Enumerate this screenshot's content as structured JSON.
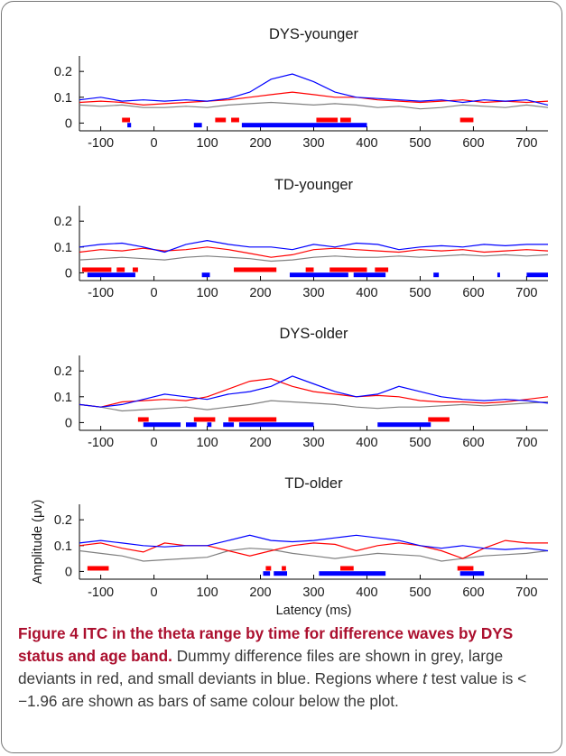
{
  "chart_data": [
    {
      "type": "line",
      "title": "DYS-younger",
      "xlabel": "",
      "ylabel": "",
      "xlim": [
        -140,
        740
      ],
      "ylim": [
        -0.03,
        0.26
      ],
      "x_ticks": [
        -100,
        0,
        100,
        200,
        300,
        400,
        500,
        600,
        700
      ],
      "y_ticks": [
        0,
        0.1,
        0.2
      ],
      "x_tick_labels": [
        "-100",
        "0",
        "100",
        "200",
        "300",
        "400",
        "500",
        "600",
        "700"
      ],
      "y_tick_labels": [
        "0",
        "0.1",
        "0.2"
      ],
      "series": [
        {
          "color": "#808080",
          "x": [
            -140,
            -100,
            -60,
            -20,
            20,
            60,
            100,
            140,
            180,
            220,
            260,
            300,
            340,
            380,
            420,
            460,
            500,
            540,
            580,
            620,
            660,
            700,
            740
          ],
          "values": [
            0.07,
            0.065,
            0.07,
            0.06,
            0.06,
            0.065,
            0.06,
            0.07,
            0.075,
            0.08,
            0.075,
            0.07,
            0.075,
            0.07,
            0.06,
            0.065,
            0.055,
            0.06,
            0.07,
            0.065,
            0.06,
            0.07,
            0.06
          ]
        },
        {
          "color": "#ff0000",
          "x": [
            -140,
            -100,
            -60,
            -20,
            20,
            60,
            100,
            140,
            180,
            220,
            260,
            300,
            340,
            380,
            420,
            460,
            500,
            540,
            580,
            620,
            660,
            700,
            740
          ],
          "values": [
            0.08,
            0.085,
            0.08,
            0.07,
            0.075,
            0.08,
            0.085,
            0.09,
            0.1,
            0.11,
            0.12,
            0.11,
            0.1,
            0.1,
            0.09,
            0.085,
            0.08,
            0.085,
            0.09,
            0.08,
            0.085,
            0.08,
            0.085
          ]
        },
        {
          "color": "#0000ff",
          "x": [
            -140,
            -100,
            -60,
            -20,
            20,
            60,
            100,
            140,
            180,
            220,
            260,
            300,
            340,
            380,
            420,
            460,
            500,
            540,
            580,
            620,
            660,
            700,
            740
          ],
          "values": [
            0.09,
            0.1,
            0.085,
            0.09,
            0.085,
            0.09,
            0.085,
            0.095,
            0.12,
            0.17,
            0.19,
            0.16,
            0.12,
            0.1,
            0.095,
            0.09,
            0.085,
            0.09,
            0.08,
            0.09,
            0.085,
            0.09,
            0.07
          ]
        }
      ],
      "sig_bars": [
        {
          "color": "#ff0000",
          "ranges": [
            [
              -60,
              -45
            ],
            [
              115,
              135
            ],
            [
              145,
              160
            ],
            [
              305,
              345
            ],
            [
              350,
              370
            ],
            [
              575,
              600
            ]
          ]
        },
        {
          "color": "#0000ff",
          "ranges": [
            [
              -50,
              -43
            ],
            [
              75,
              90
            ],
            [
              165,
              400
            ]
          ]
        }
      ]
    },
    {
      "type": "line",
      "title": "TD-younger",
      "xlabel": "",
      "ylabel": "",
      "xlim": [
        -140,
        740
      ],
      "ylim": [
        -0.03,
        0.26
      ],
      "x_ticks": [
        -100,
        0,
        100,
        200,
        300,
        400,
        500,
        600,
        700
      ],
      "y_ticks": [
        0,
        0.1,
        0.2
      ],
      "x_tick_labels": [
        "-100",
        "0",
        "100",
        "200",
        "300",
        "400",
        "500",
        "600",
        "700"
      ],
      "y_tick_labels": [
        "0",
        "0.1",
        "0.2"
      ],
      "series": [
        {
          "color": "#808080",
          "x": [
            -140,
            -100,
            -60,
            -20,
            20,
            60,
            100,
            140,
            180,
            220,
            260,
            300,
            340,
            380,
            420,
            460,
            500,
            540,
            580,
            620,
            660,
            700,
            740
          ],
          "values": [
            0.05,
            0.055,
            0.06,
            0.055,
            0.05,
            0.06,
            0.065,
            0.06,
            0.055,
            0.045,
            0.05,
            0.06,
            0.065,
            0.06,
            0.06,
            0.065,
            0.06,
            0.065,
            0.07,
            0.065,
            0.07,
            0.065,
            0.07
          ]
        },
        {
          "color": "#ff0000",
          "x": [
            -140,
            -100,
            -60,
            -20,
            20,
            60,
            100,
            140,
            180,
            220,
            260,
            300,
            340,
            380,
            420,
            460,
            500,
            540,
            580,
            620,
            660,
            700,
            740
          ],
          "values": [
            0.08,
            0.09,
            0.085,
            0.095,
            0.085,
            0.09,
            0.1,
            0.09,
            0.075,
            0.06,
            0.07,
            0.09,
            0.095,
            0.09,
            0.085,
            0.08,
            0.09,
            0.085,
            0.09,
            0.08,
            0.085,
            0.09,
            0.085
          ]
        },
        {
          "color": "#0000ff",
          "x": [
            -140,
            -100,
            -60,
            -20,
            20,
            60,
            100,
            140,
            180,
            220,
            260,
            300,
            340,
            380,
            420,
            460,
            500,
            540,
            580,
            620,
            660,
            700,
            740
          ],
          "values": [
            0.1,
            0.11,
            0.115,
            0.1,
            0.08,
            0.11,
            0.125,
            0.11,
            0.1,
            0.1,
            0.09,
            0.11,
            0.1,
            0.115,
            0.11,
            0.09,
            0.1,
            0.105,
            0.1,
            0.11,
            0.105,
            0.11,
            0.11
          ]
        }
      ],
      "sig_bars": [
        {
          "color": "#ff0000",
          "ranges": [
            [
              -135,
              -80
            ],
            [
              -70,
              -55
            ],
            [
              -40,
              -30
            ],
            [
              150,
              230
            ],
            [
              285,
              300
            ],
            [
              330,
              400
            ],
            [
              415,
              440
            ]
          ]
        },
        {
          "color": "#0000ff",
          "ranges": [
            [
              -125,
              -35
            ],
            [
              90,
              105
            ],
            [
              255,
              365
            ],
            [
              375,
              435
            ],
            [
              525,
              535
            ],
            [
              645,
              650
            ],
            [
              700,
              740
            ]
          ]
        }
      ]
    },
    {
      "type": "line",
      "title": "DYS-older",
      "xlabel": "",
      "ylabel": "",
      "xlim": [
        -140,
        740
      ],
      "ylim": [
        -0.03,
        0.26
      ],
      "x_ticks": [
        -100,
        0,
        100,
        200,
        300,
        400,
        500,
        600,
        700
      ],
      "y_ticks": [
        0,
        0.1,
        0.2
      ],
      "x_tick_labels": [
        "-100",
        "0",
        "100",
        "200",
        "300",
        "400",
        "500",
        "600",
        "700"
      ],
      "y_tick_labels": [
        "0",
        "0.1",
        "0.2"
      ],
      "series": [
        {
          "color": "#808080",
          "x": [
            -140,
            -100,
            -60,
            -20,
            20,
            60,
            100,
            140,
            180,
            220,
            260,
            300,
            340,
            380,
            420,
            460,
            500,
            540,
            580,
            620,
            660,
            700,
            740
          ],
          "values": [
            0.07,
            0.06,
            0.045,
            0.05,
            0.055,
            0.06,
            0.05,
            0.06,
            0.07,
            0.085,
            0.08,
            0.075,
            0.07,
            0.06,
            0.055,
            0.06,
            0.06,
            0.065,
            0.07,
            0.065,
            0.07,
            0.075,
            0.08
          ]
        },
        {
          "color": "#ff0000",
          "x": [
            -140,
            -100,
            -60,
            -20,
            20,
            60,
            100,
            140,
            180,
            220,
            260,
            300,
            340,
            380,
            420,
            460,
            500,
            540,
            580,
            620,
            660,
            700,
            740
          ],
          "values": [
            0.07,
            0.06,
            0.08,
            0.085,
            0.09,
            0.085,
            0.1,
            0.13,
            0.16,
            0.17,
            0.14,
            0.12,
            0.11,
            0.1,
            0.105,
            0.1,
            0.085,
            0.08,
            0.08,
            0.075,
            0.08,
            0.09,
            0.1
          ]
        },
        {
          "color": "#0000ff",
          "x": [
            -140,
            -100,
            -60,
            -20,
            20,
            60,
            100,
            140,
            180,
            220,
            260,
            300,
            340,
            380,
            420,
            460,
            500,
            540,
            580,
            620,
            660,
            700,
            740
          ],
          "values": [
            0.07,
            0.06,
            0.07,
            0.09,
            0.11,
            0.1,
            0.09,
            0.11,
            0.12,
            0.14,
            0.18,
            0.15,
            0.12,
            0.1,
            0.11,
            0.14,
            0.12,
            0.1,
            0.09,
            0.085,
            0.09,
            0.085,
            0.075
          ]
        }
      ],
      "sig_bars": [
        {
          "color": "#ff0000",
          "ranges": [
            [
              -30,
              -10
            ],
            [
              75,
              115
            ],
            [
              140,
              230
            ],
            [
              515,
              555
            ]
          ]
        },
        {
          "color": "#0000ff",
          "ranges": [
            [
              -20,
              50
            ],
            [
              60,
              80
            ],
            [
              100,
              108
            ],
            [
              130,
              150
            ],
            [
              160,
              300
            ],
            [
              420,
              520
            ]
          ]
        }
      ]
    },
    {
      "type": "line",
      "title": "TD-older",
      "xlabel": "Latency (ms)",
      "ylabel": "Amplitude (μv)",
      "xlim": [
        -140,
        740
      ],
      "ylim": [
        -0.03,
        0.26
      ],
      "x_ticks": [
        -100,
        0,
        100,
        200,
        300,
        400,
        500,
        600,
        700
      ],
      "y_ticks": [
        0,
        0.1,
        0.2
      ],
      "x_tick_labels": [
        "-100",
        "0",
        "100",
        "200",
        "300",
        "400",
        "500",
        "600",
        "700"
      ],
      "y_tick_labels": [
        "0",
        "0.1",
        "0.2"
      ],
      "series": [
        {
          "color": "#808080",
          "x": [
            -140,
            -100,
            -60,
            -20,
            20,
            60,
            100,
            140,
            180,
            220,
            260,
            300,
            340,
            380,
            420,
            460,
            500,
            540,
            580,
            620,
            660,
            700,
            740
          ],
          "values": [
            0.08,
            0.07,
            0.06,
            0.04,
            0.045,
            0.05,
            0.055,
            0.08,
            0.09,
            0.085,
            0.07,
            0.06,
            0.05,
            0.06,
            0.07,
            0.065,
            0.06,
            0.04,
            0.05,
            0.06,
            0.065,
            0.07,
            0.08
          ]
        },
        {
          "color": "#ff0000",
          "x": [
            -140,
            -100,
            -60,
            -20,
            20,
            60,
            100,
            140,
            180,
            220,
            260,
            300,
            340,
            380,
            420,
            460,
            500,
            540,
            580,
            620,
            660,
            700,
            740
          ],
          "values": [
            0.1,
            0.11,
            0.09,
            0.075,
            0.11,
            0.1,
            0.1,
            0.08,
            0.06,
            0.08,
            0.1,
            0.11,
            0.105,
            0.08,
            0.1,
            0.11,
            0.1,
            0.08,
            0.05,
            0.09,
            0.12,
            0.11,
            0.11
          ]
        },
        {
          "color": "#0000ff",
          "x": [
            -140,
            -100,
            -60,
            -20,
            20,
            60,
            100,
            140,
            180,
            220,
            260,
            300,
            340,
            380,
            420,
            460,
            500,
            540,
            580,
            620,
            660,
            700,
            740
          ],
          "values": [
            0.11,
            0.12,
            0.11,
            0.1,
            0.095,
            0.1,
            0.1,
            0.12,
            0.14,
            0.12,
            0.115,
            0.12,
            0.13,
            0.14,
            0.13,
            0.12,
            0.1,
            0.09,
            0.1,
            0.09,
            0.085,
            0.09,
            0.08
          ]
        }
      ],
      "sig_bars": [
        {
          "color": "#ff0000",
          "ranges": [
            [
              -125,
              -85
            ],
            [
              210,
              220
            ],
            [
              240,
              248
            ],
            [
              350,
              375
            ],
            [
              570,
              600
            ]
          ]
        },
        {
          "color": "#0000ff",
          "ranges": [
            [
              205,
              218
            ],
            [
              225,
              250
            ],
            [
              310,
              435
            ],
            [
              575,
              620
            ]
          ]
        }
      ]
    }
  ],
  "caption": {
    "lead": "Figure 4 ITC in the theta range by time for difference waves by DYS status and age band.",
    "body_1": " Dummy difference files are shown in grey, large deviants in red, and small deviants in blue. Regions where ",
    "italic_t": "t",
    "body_2": " test value is < −1.96 are shown as bars of same colour below the plot."
  }
}
